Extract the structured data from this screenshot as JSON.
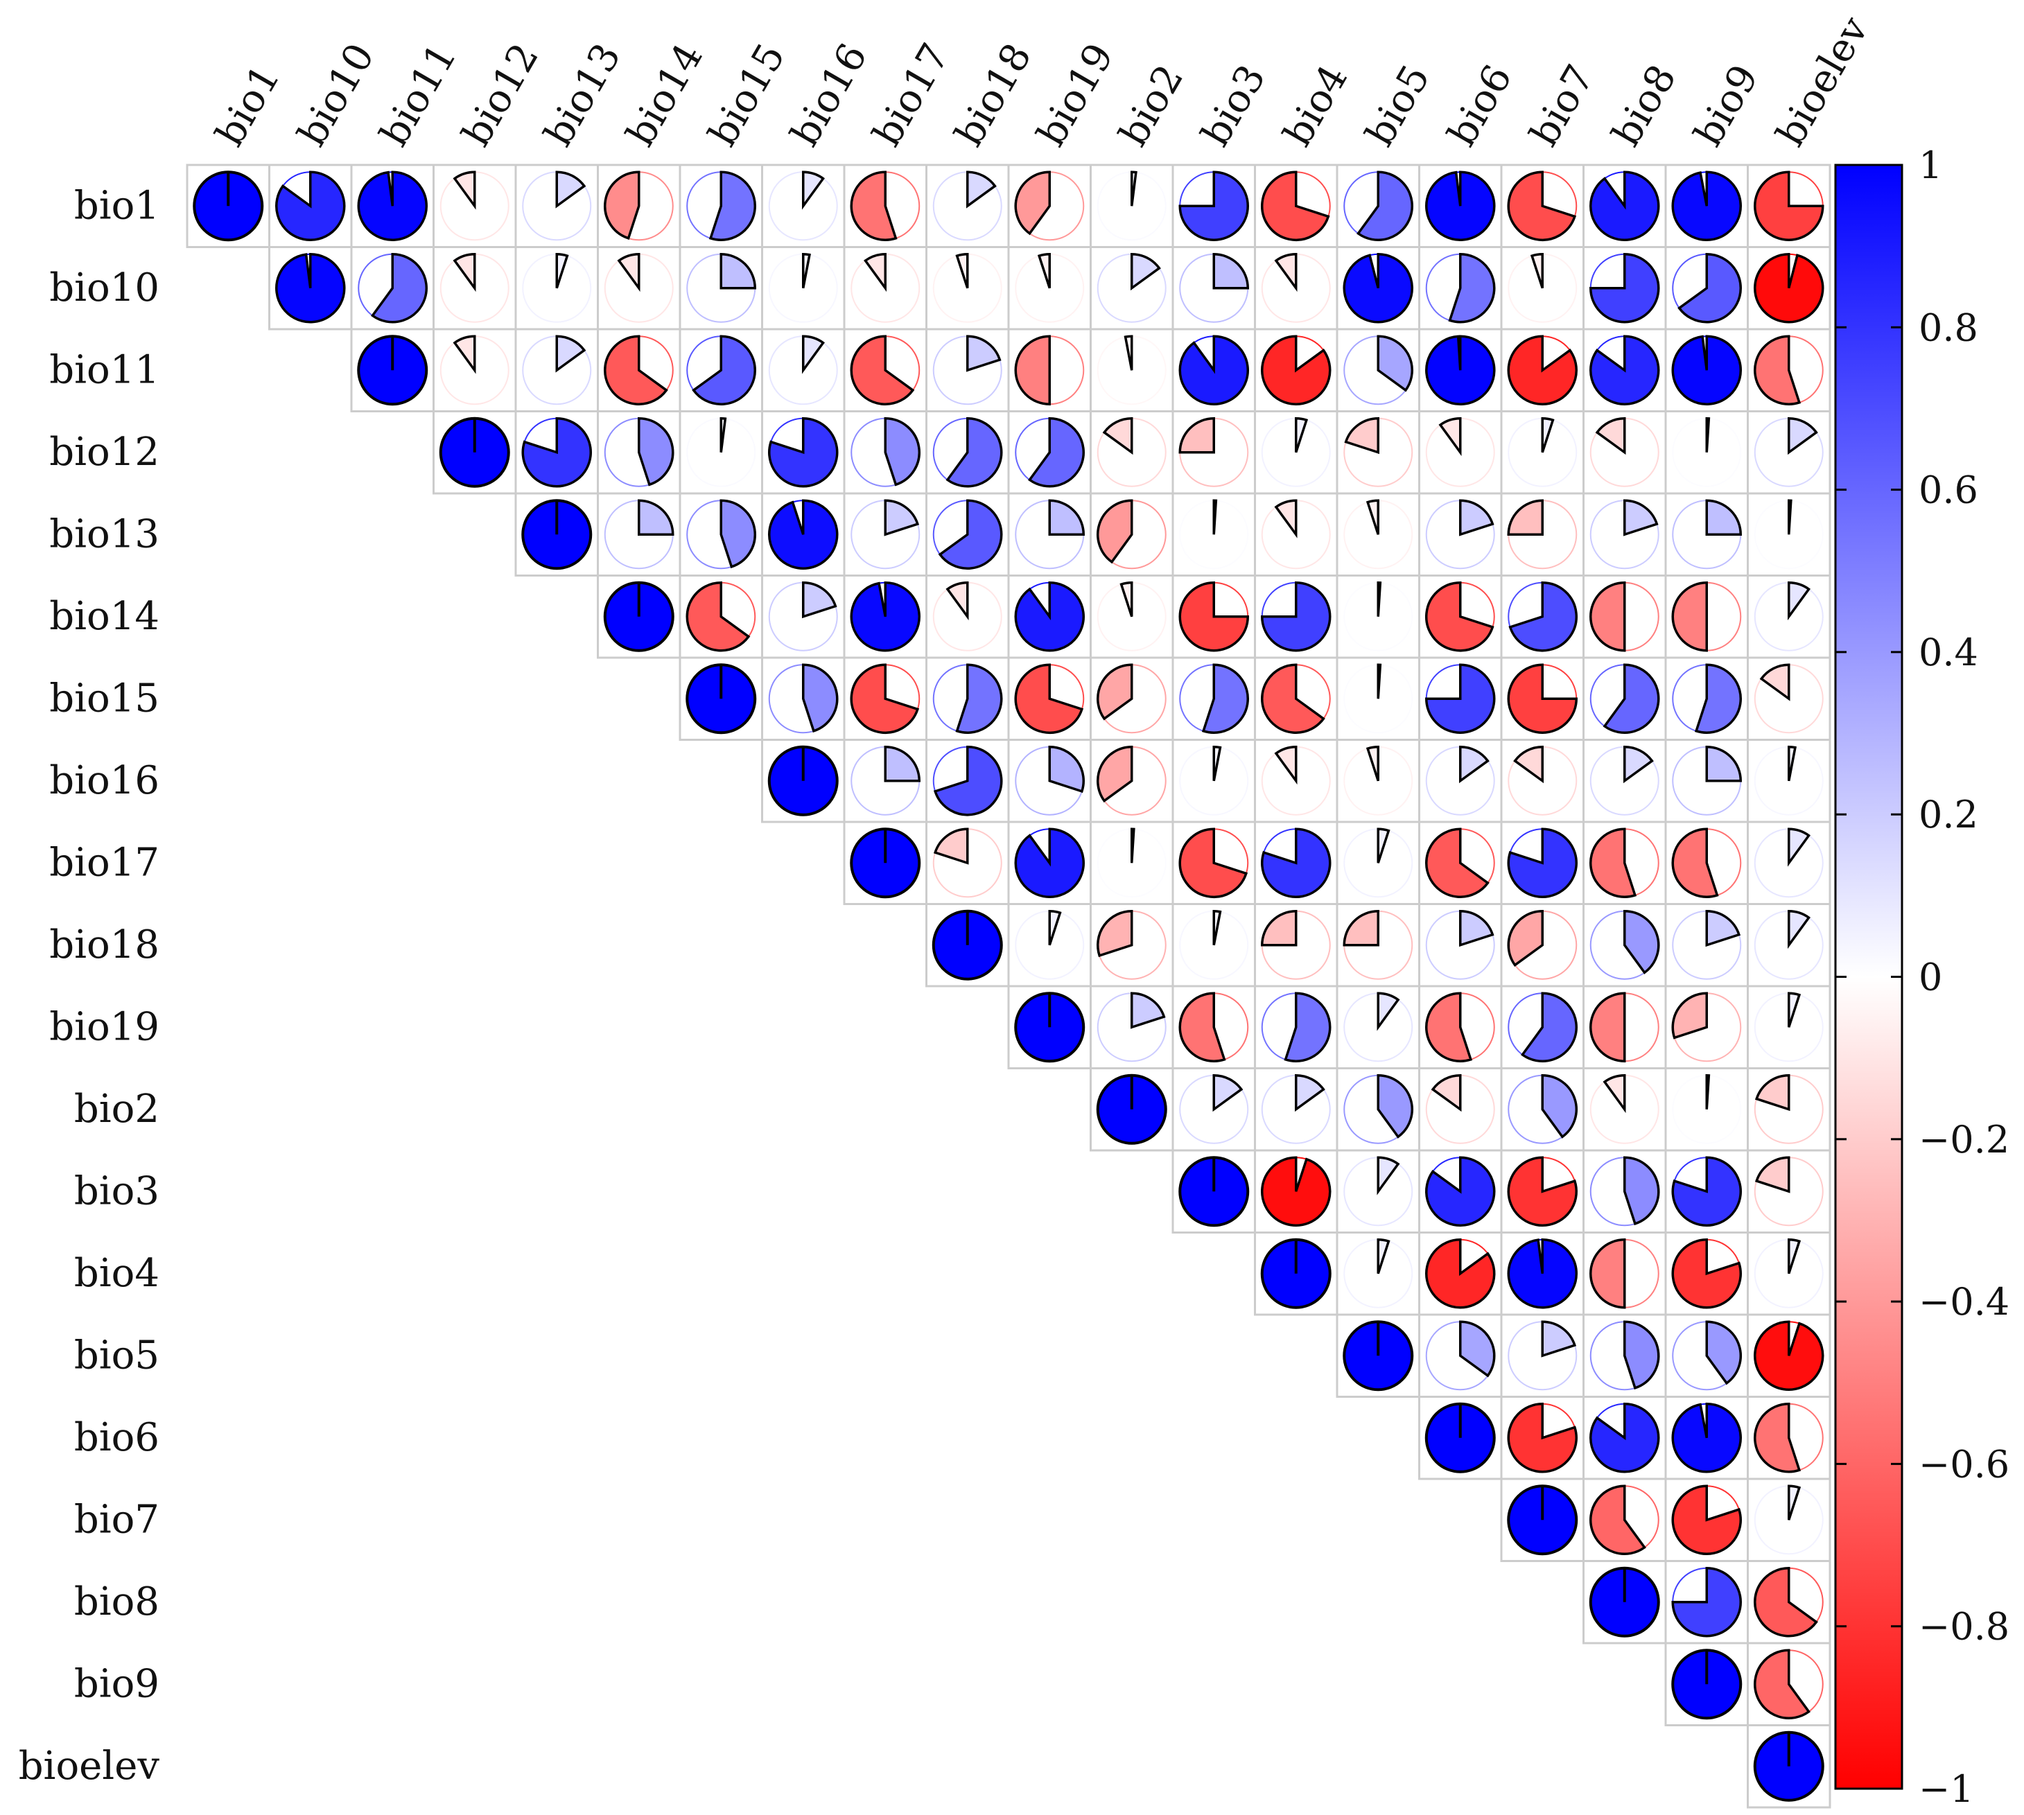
{
  "chart_data": {
    "type": "heatmap",
    "style": "pie-correlogram",
    "triangle": "upper",
    "variables": [
      "bio1",
      "bio10",
      "bio11",
      "bio12",
      "bio13",
      "bio14",
      "bio15",
      "bio16",
      "bio17",
      "bio18",
      "bio19",
      "bio2",
      "bio3",
      "bio4",
      "bio5",
      "bio6",
      "bio7",
      "bio8",
      "bio9",
      "bioelev"
    ],
    "upper_values": [
      [
        1.0,
        0.85,
        0.98,
        -0.1,
        0.15,
        -0.45,
        0.55,
        0.1,
        -0.55,
        0.15,
        -0.4,
        0.02,
        0.75,
        -0.7,
        0.6,
        0.98,
        -0.7,
        0.9,
        0.97,
        -0.75
      ],
      [
        0.98,
        0.6,
        -0.1,
        0.05,
        -0.1,
        0.25,
        0.03,
        -0.1,
        -0.05,
        -0.05,
        0.15,
        0.25,
        -0.1,
        0.96,
        0.55,
        -0.05,
        0.75,
        0.65,
        -0.96
      ],
      [
        1.0,
        -0.1,
        0.15,
        -0.65,
        0.65,
        0.1,
        -0.65,
        0.2,
        -0.5,
        -0.03,
        0.9,
        -0.85,
        0.35,
        0.99,
        -0.85,
        0.85,
        0.98,
        -0.55
      ],
      [
        1.0,
        0.8,
        0.45,
        0.02,
        0.8,
        0.45,
        0.6,
        0.6,
        -0.15,
        -0.25,
        0.05,
        -0.2,
        -0.1,
        0.05,
        -0.15,
        0.01,
        0.15
      ],
      [
        1.0,
        0.25,
        0.45,
        0.95,
        0.2,
        0.65,
        0.25,
        -0.4,
        0.01,
        -0.1,
        -0.05,
        0.2,
        -0.25,
        0.2,
        0.25,
        0.01
      ],
      [
        1.0,
        -0.65,
        0.2,
        0.97,
        -0.1,
        0.9,
        -0.05,
        -0.75,
        0.75,
        0.01,
        -0.7,
        0.7,
        -0.5,
        -0.5,
        0.1
      ],
      [
        1.0,
        0.45,
        -0.7,
        0.55,
        -0.7,
        -0.35,
        0.55,
        -0.65,
        0.01,
        0.75,
        -0.75,
        0.6,
        0.55,
        -0.15
      ],
      [
        1.0,
        0.25,
        0.7,
        0.3,
        -0.35,
        0.03,
        -0.1,
        -0.05,
        0.15,
        -0.15,
        0.15,
        0.25,
        0.03
      ],
      [
        1.0,
        -0.2,
        0.9,
        0.01,
        -0.7,
        0.8,
        0.05,
        -0.65,
        0.8,
        -0.55,
        -0.55,
        0.1
      ],
      [
        1.0,
        0.05,
        -0.3,
        0.03,
        -0.25,
        -0.25,
        0.2,
        -0.35,
        0.4,
        0.2,
        0.1
      ],
      [
        1.0,
        0.2,
        -0.55,
        0.55,
        0.1,
        -0.55,
        0.6,
        -0.5,
        -0.3,
        0.05
      ],
      [
        1.0,
        0.15,
        0.15,
        0.4,
        -0.15,
        0.4,
        -0.1,
        0.01,
        -0.2
      ],
      [
        1.0,
        -0.95,
        0.1,
        0.85,
        -0.8,
        0.45,
        0.8,
        -0.2
      ],
      [
        1.0,
        0.05,
        -0.85,
        0.98,
        -0.5,
        -0.8,
        0.05
      ],
      [
        1.0,
        0.35,
        0.2,
        0.45,
        0.4,
        -0.95
      ],
      [
        1.0,
        -0.8,
        0.85,
        0.97,
        -0.55
      ],
      [
        1.0,
        -0.6,
        -0.8,
        0.05
      ],
      [
        1.0,
        0.75,
        -0.65
      ],
      [
        1.0,
        -0.6
      ],
      [
        1.0
      ]
    ],
    "colorbar": {
      "min": -1,
      "max": 1,
      "ticks": [
        "1",
        "0.8",
        "0.6",
        "0.4",
        "0.2",
        "0",
        "−0.2",
        "−0.4",
        "−0.6",
        "−0.8",
        "−1"
      ],
      "colors": {
        "negative": "#ff0000",
        "zero": "#ffffff",
        "positive": "#0000ff"
      }
    }
  }
}
